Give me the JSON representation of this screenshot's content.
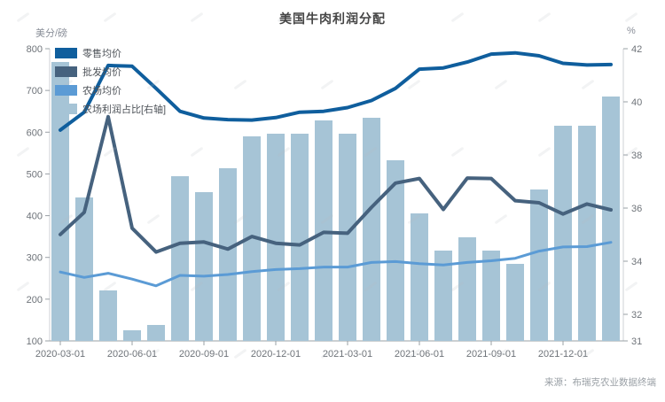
{
  "title": "美国牛肉利润分配",
  "source": "来源：布瑞克农业数据终端",
  "chart_data": {
    "type": "combo",
    "title": "美国牛肉利润分配",
    "legend_position": "top-left-vertical",
    "grid": false,
    "left_axis": {
      "unit": "美分/磅",
      "min": 100,
      "max": 800,
      "ticks": [
        800,
        700,
        600,
        500,
        400,
        300,
        200,
        100
      ]
    },
    "right_axis": {
      "unit": "%",
      "min": 31,
      "max": 42,
      "ticks": [
        42,
        40,
        38,
        36,
        34,
        32,
        31
      ]
    },
    "x": [
      "2020-03",
      "2020-04",
      "2020-05",
      "2020-06",
      "2020-07",
      "2020-08",
      "2020-09",
      "2020-10",
      "2020-11",
      "2020-12",
      "2021-01",
      "2021-02",
      "2021-03",
      "2021-04",
      "2021-05",
      "2021-06",
      "2021-07",
      "2021-08",
      "2021-09",
      "2021-10",
      "2021-11",
      "2021-12",
      "2022-01",
      "2022-02"
    ],
    "x_tick_labels": [
      "2020-03-01",
      "2020-06-01",
      "2020-09-01",
      "2020-12-01",
      "2021-03-01",
      "2021-06-01",
      "2021-09-01",
      "2021-12-01"
    ],
    "x_tick_every": 3,
    "series": [
      {
        "name": "零售均价",
        "type": "line",
        "axis": "left",
        "color": "#0f5e9d",
        "line_width": 4,
        "values": [
          605,
          648,
          760,
          758,
          705,
          650,
          634,
          630,
          629,
          635,
          648,
          650,
          659,
          676,
          705,
          751,
          754,
          768,
          787,
          790,
          783,
          765,
          761,
          762
        ]
      },
      {
        "name": "批发均价",
        "type": "line",
        "axis": "left",
        "color": "#46627e",
        "line_width": 4,
        "values": [
          355,
          408,
          637,
          370,
          313,
          334,
          337,
          320,
          350,
          334,
          330,
          360,
          358,
          420,
          478,
          489,
          415,
          490,
          489,
          436,
          431,
          404,
          428,
          414
        ]
      },
      {
        "name": "农场均价",
        "type": "line",
        "axis": "left",
        "color": "#5b9bd5",
        "line_width": 3,
        "values": [
          265,
          252,
          262,
          248,
          232,
          257,
          255,
          259,
          266,
          271,
          273,
          277,
          277,
          288,
          290,
          285,
          282,
          288,
          292,
          298,
          315,
          325,
          326,
          336
        ]
      },
      {
        "name": "农场利润占比[右轴]",
        "type": "bar",
        "axis": "right",
        "color": "#a6c4d6",
        "values": [
          41.5,
          36.4,
          32.9,
          31.4,
          31.6,
          37.2,
          36.6,
          37.5,
          38.7,
          38.8,
          38.8,
          39.3,
          38.8,
          39.4,
          37.8,
          35.8,
          34.4,
          34.9,
          34.4,
          33.9,
          36.7,
          39.1,
          39.1,
          40.2
        ]
      }
    ]
  }
}
